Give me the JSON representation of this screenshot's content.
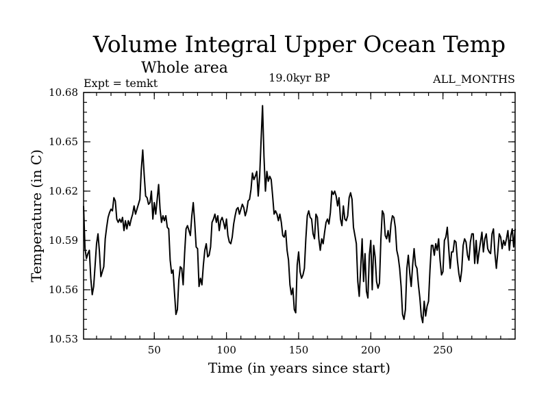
{
  "chart_data": {
    "type": "line",
    "title": "Volume Integral Upper Ocean Temp",
    "subtitle": "Whole area",
    "left_label": "Expt = temkt",
    "center_label": "19.0kyr BP",
    "right_label": "ALL_MONTHS",
    "xlabel": "Time (in years since start)",
    "ylabel": "Temperature (in C)",
    "xlim": [
      1,
      300
    ],
    "ylim": [
      10.53,
      10.68
    ],
    "xticks": [
      50,
      100,
      150,
      200,
      250
    ],
    "xtick_labels": [
      "50",
      "100",
      "150",
      "200",
      "250"
    ],
    "yticks": [
      10.53,
      10.56,
      10.59,
      10.62,
      10.65,
      10.68
    ],
    "ytick_labels": [
      "10.53",
      "10.56",
      "10.59",
      "10.62",
      "10.65",
      "10.68"
    ],
    "line_color": "#000000",
    "series": [
      {
        "name": "temkt",
        "x": [
          1,
          2,
          3,
          4,
          5,
          6,
          7,
          8,
          9,
          10,
          11,
          12,
          13,
          14,
          15,
          16,
          17,
          18,
          19,
          20,
          21,
          22,
          23,
          24,
          25,
          26,
          27,
          28,
          29,
          30,
          31,
          32,
          33,
          34,
          35,
          36,
          37,
          38,
          39,
          40,
          41,
          42,
          43,
          44,
          45,
          46,
          47,
          48,
          49,
          50,
          51,
          52,
          53,
          54,
          55,
          56,
          57,
          58,
          59,
          60,
          61,
          62,
          63,
          64,
          65,
          66,
          67,
          68,
          69,
          70,
          71,
          72,
          73,
          74,
          75,
          76,
          77,
          78,
          79,
          80,
          81,
          82,
          83,
          84,
          85,
          86,
          87,
          88,
          89,
          90,
          91,
          92,
          93,
          94,
          95,
          96,
          97,
          98,
          99,
          100,
          101,
          102,
          103,
          104,
          105,
          106,
          107,
          108,
          109,
          110,
          111,
          112,
          113,
          114,
          115,
          116,
          117,
          118,
          119,
          120,
          121,
          122,
          123,
          124,
          125,
          126,
          127,
          128,
          129,
          130,
          131,
          132,
          133,
          134,
          135,
          136,
          137,
          138,
          139,
          140,
          141,
          142,
          143,
          144,
          145,
          146,
          147,
          148,
          149,
          150,
          151,
          152,
          153,
          154,
          155,
          156,
          157,
          158,
          159,
          160,
          161,
          162,
          163,
          164,
          165,
          166,
          167,
          168,
          169,
          170,
          171,
          172,
          173,
          174,
          175,
          176,
          177,
          178,
          179,
          180,
          181,
          182,
          183,
          184,
          185,
          186,
          187,
          188,
          189,
          190,
          191,
          192,
          193,
          194,
          195,
          196,
          197,
          198,
          199,
          200,
          201,
          202,
          203,
          204,
          205,
          206,
          207,
          208,
          209,
          210,
          211,
          212,
          213,
          214,
          215,
          216,
          217,
          218,
          219,
          220,
          221,
          222,
          223,
          224,
          225,
          226,
          227,
          228,
          229,
          230,
          231,
          232,
          233,
          234,
          235,
          236,
          237,
          238,
          239,
          240,
          241,
          242,
          243,
          244,
          245,
          246,
          247,
          248,
          249,
          250,
          251,
          252,
          253,
          254,
          255,
          256,
          257,
          258,
          259,
          260,
          261,
          262,
          263,
          264,
          265,
          266,
          267,
          268,
          269,
          270,
          271,
          272,
          273,
          274,
          275,
          276,
          277,
          278,
          279,
          280,
          281,
          282,
          283,
          284,
          285,
          286,
          287,
          288,
          289,
          290,
          291,
          292,
          293,
          294,
          295,
          296,
          297,
          298,
          299,
          300
        ],
        "values": [
          10.611,
          10.585,
          10.579,
          10.582,
          10.584,
          10.567,
          10.557,
          10.562,
          10.575,
          10.588,
          10.594,
          10.583,
          10.568,
          10.571,
          10.574,
          10.591,
          10.598,
          10.604,
          10.607,
          10.609,
          10.608,
          10.616,
          10.614,
          10.603,
          10.601,
          10.603,
          10.601,
          10.604,
          10.596,
          10.602,
          10.597,
          10.602,
          10.599,
          10.603,
          10.606,
          10.611,
          10.606,
          10.609,
          10.612,
          10.615,
          10.633,
          10.645,
          10.63,
          10.617,
          10.616,
          10.612,
          10.613,
          10.62,
          10.603,
          10.613,
          10.606,
          10.615,
          10.624,
          10.609,
          10.601,
          10.605,
          10.602,
          10.605,
          10.598,
          10.597,
          10.578,
          10.57,
          10.572,
          10.558,
          10.545,
          10.548,
          10.566,
          10.574,
          10.573,
          10.563,
          10.582,
          10.597,
          10.599,
          10.596,
          10.593,
          10.605,
          10.613,
          10.601,
          10.586,
          10.585,
          10.562,
          10.567,
          10.563,
          10.575,
          10.584,
          10.588,
          10.58,
          10.581,
          10.586,
          10.601,
          10.603,
          10.606,
          10.601,
          10.605,
          10.596,
          10.602,
          10.604,
          10.601,
          10.597,
          10.603,
          10.593,
          10.589,
          10.588,
          10.592,
          10.6,
          10.605,
          10.609,
          10.61,
          10.606,
          10.609,
          10.612,
          10.61,
          10.605,
          10.608,
          10.614,
          10.615,
          10.621,
          10.631,
          10.627,
          10.629,
          10.632,
          10.617,
          10.629,
          10.651,
          10.672,
          10.641,
          10.62,
          10.632,
          10.626,
          10.629,
          10.627,
          10.617,
          10.606,
          10.608,
          10.606,
          10.602,
          10.606,
          10.601,
          10.593,
          10.592,
          10.596,
          10.584,
          10.578,
          10.563,
          10.557,
          10.561,
          10.548,
          10.546,
          10.575,
          10.583,
          10.571,
          10.567,
          10.569,
          10.573,
          10.591,
          10.605,
          10.608,
          10.604,
          10.603,
          10.594,
          10.591,
          10.606,
          10.604,
          10.591,
          10.584,
          10.591,
          10.588,
          10.595,
          10.601,
          10.603,
          10.6,
          10.607,
          10.62,
          10.618,
          10.62,
          10.617,
          10.611,
          10.616,
          10.603,
          10.599,
          10.611,
          10.603,
          10.602,
          10.605,
          10.616,
          10.619,
          10.615,
          10.598,
          10.593,
          10.588,
          10.565,
          10.556,
          10.573,
          10.591,
          10.565,
          10.582,
          10.559,
          10.555,
          10.581,
          10.59,
          10.56,
          10.587,
          10.58,
          10.565,
          10.561,
          10.564,
          10.591,
          10.608,
          10.606,
          10.593,
          10.591,
          10.596,
          10.589,
          10.6,
          10.605,
          10.604,
          10.598,
          10.584,
          10.58,
          10.573,
          10.562,
          10.545,
          10.542,
          10.548,
          10.573,
          10.581,
          10.57,
          10.562,
          10.575,
          10.585,
          10.575,
          10.573,
          10.563,
          10.555,
          10.544,
          10.54,
          10.553,
          10.544,
          10.55,
          10.553,
          10.572,
          10.587,
          10.587,
          10.581,
          10.588,
          10.584,
          10.591,
          10.578,
          10.569,
          10.571,
          10.59,
          10.592,
          10.598,
          10.585,
          10.573,
          10.583,
          10.583,
          10.59,
          10.589,
          10.578,
          10.57,
          10.565,
          10.572,
          10.587,
          10.591,
          10.589,
          10.581,
          10.578,
          10.589,
          10.594,
          10.594,
          10.576,
          10.59,
          10.576,
          10.583,
          10.589,
          10.595,
          10.583,
          10.591,
          10.594,
          10.585,
          10.583,
          10.582,
          10.594,
          10.597,
          10.582,
          10.573,
          10.583,
          10.594,
          10.592,
          10.585,
          10.59,
          10.587,
          10.591,
          10.596,
          10.584,
          10.593,
          10.597,
          10.586,
          10.597
        ]
      }
    ]
  }
}
